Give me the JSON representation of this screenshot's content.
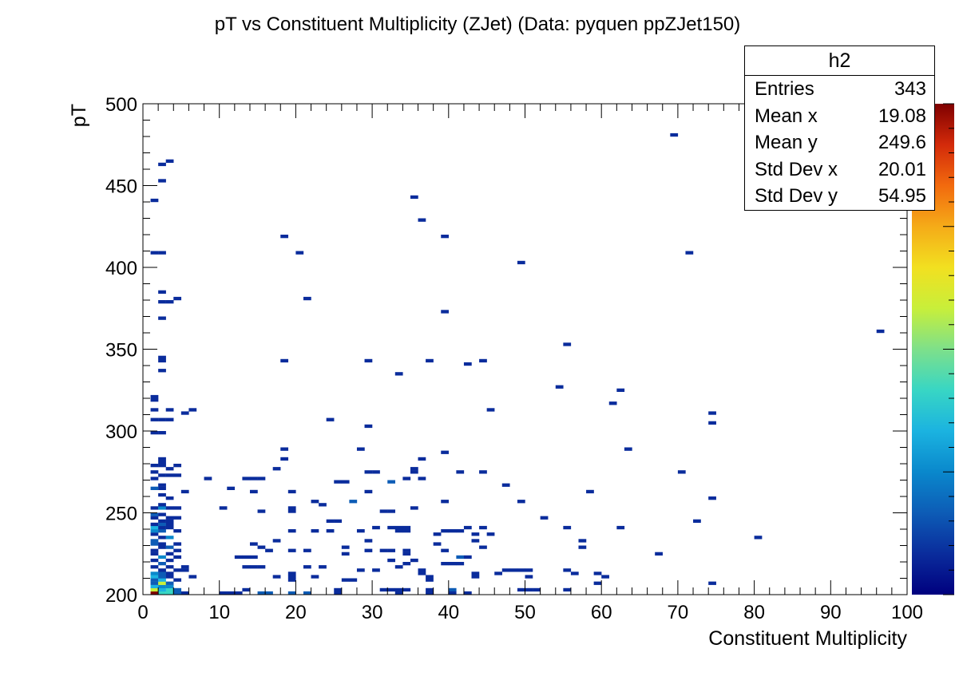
{
  "chart_data": {
    "type": "heatmap",
    "title": "pT vs Constituent Multiplicity (ZJet) (Data: pyquen ppZJet150)",
    "xlabel": "Constituent Multiplicity",
    "ylabel": "pT",
    "xlim": [
      0,
      100
    ],
    "ylim": [
      200,
      500
    ],
    "x_ticks": [
      0,
      10,
      20,
      30,
      40,
      50,
      60,
      70,
      80,
      90,
      100
    ],
    "y_ticks": [
      200,
      250,
      300,
      350,
      400,
      450,
      500
    ],
    "bin_width_x": 1,
    "bin_width_y": 2,
    "z_range": [
      0,
      20
    ],
    "colormap": [
      "#00007f",
      "#0a2c9c",
      "#0d5cb6",
      "#0a88cc",
      "#1bb3e0",
      "#38d6c4",
      "#7ee08a",
      "#c8ef3a",
      "#f2e020",
      "#f5ab18",
      "#f26a0e",
      "#d32a0a",
      "#7f0000"
    ],
    "cells": [
      [
        1,
        200,
        20
      ],
      [
        2,
        200,
        9
      ],
      [
        3,
        200,
        8
      ],
      [
        4,
        200,
        3
      ],
      [
        5,
        200,
        2
      ],
      [
        3,
        202,
        8
      ],
      [
        1,
        202,
        12
      ],
      [
        2,
        202,
        7
      ],
      [
        4,
        202,
        3
      ],
      [
        1,
        204,
        6
      ],
      [
        2,
        204,
        5
      ],
      [
        3,
        204,
        5
      ],
      [
        1,
        206,
        4
      ],
      [
        2,
        206,
        12
      ],
      [
        3,
        206,
        3
      ],
      [
        1,
        208,
        3
      ],
      [
        2,
        208,
        6
      ],
      [
        4,
        208,
        2
      ],
      [
        1,
        210,
        7
      ],
      [
        2,
        210,
        3
      ],
      [
        3,
        210,
        2
      ],
      [
        6,
        210,
        2
      ],
      [
        1,
        212,
        5
      ],
      [
        2,
        212,
        3
      ],
      [
        3,
        212,
        2
      ],
      [
        2,
        214,
        2
      ],
      [
        4,
        214,
        1
      ],
      [
        5,
        214,
        1
      ],
      [
        1,
        216,
        2
      ],
      [
        3,
        216,
        1
      ],
      [
        5,
        216,
        1
      ],
      [
        2,
        218,
        4
      ],
      [
        1,
        220,
        2
      ],
      [
        3,
        220,
        1
      ],
      [
        2,
        222,
        5
      ],
      [
        4,
        222,
        1
      ],
      [
        1,
        224,
        2
      ],
      [
        3,
        224,
        2
      ],
      [
        1,
        226,
        1
      ],
      [
        4,
        226,
        1
      ],
      [
        2,
        228,
        1
      ],
      [
        3,
        228,
        3
      ],
      [
        1,
        230,
        3
      ],
      [
        2,
        230,
        1
      ],
      [
        4,
        230,
        1
      ],
      [
        1,
        232,
        4
      ],
      [
        2,
        234,
        1
      ],
      [
        3,
        234,
        5
      ],
      [
        1,
        236,
        2
      ],
      [
        1,
        238,
        5
      ],
      [
        2,
        238,
        3
      ],
      [
        4,
        238,
        1
      ],
      [
        1,
        240,
        6
      ],
      [
        2,
        240,
        2
      ],
      [
        3,
        240,
        2
      ],
      [
        1,
        242,
        2
      ],
      [
        2,
        242,
        3
      ],
      [
        3,
        242,
        1
      ],
      [
        2,
        244,
        1
      ],
      [
        3,
        244,
        1
      ],
      [
        1,
        246,
        1
      ],
      [
        3,
        246,
        2
      ],
      [
        4,
        246,
        1
      ],
      [
        1,
        248,
        3
      ],
      [
        2,
        248,
        1
      ],
      [
        1,
        252,
        2
      ],
      [
        2,
        252,
        5
      ],
      [
        3,
        252,
        1
      ],
      [
        4,
        252,
        1
      ],
      [
        2,
        254,
        2
      ],
      [
        3,
        258,
        1
      ],
      [
        2,
        260,
        1
      ],
      [
        2,
        264,
        1
      ],
      [
        1,
        264,
        4
      ],
      [
        2,
        266,
        2
      ],
      [
        5,
        262,
        1
      ],
      [
        1,
        270,
        1
      ],
      [
        2,
        272,
        1
      ],
      [
        3,
        272,
        1
      ],
      [
        4,
        272,
        1
      ],
      [
        1,
        274,
        1
      ],
      [
        3,
        276,
        1
      ],
      [
        1,
        278,
        1
      ],
      [
        2,
        278,
        1
      ],
      [
        4,
        278,
        1
      ],
      [
        2,
        280,
        1
      ],
      [
        2,
        282,
        1
      ],
      [
        1,
        298,
        1
      ],
      [
        2,
        298,
        1
      ],
      [
        1,
        306,
        1
      ],
      [
        2,
        306,
        1
      ],
      [
        3,
        306,
        1
      ],
      [
        1,
        312,
        1
      ],
      [
        3,
        312,
        1
      ],
      [
        1,
        318,
        1
      ],
      [
        1,
        320,
        1
      ],
      [
        5,
        310,
        1
      ],
      [
        6,
        312,
        1
      ],
      [
        2,
        336,
        1
      ],
      [
        2,
        342,
        1
      ],
      [
        2,
        344,
        1
      ],
      [
        2,
        368,
        1
      ],
      [
        2,
        378,
        1
      ],
      [
        3,
        378,
        1
      ],
      [
        2,
        384,
        1
      ],
      [
        4,
        380,
        1
      ],
      [
        1,
        408,
        1
      ],
      [
        2,
        408,
        1
      ],
      [
        1,
        440,
        1
      ],
      [
        2,
        452,
        1
      ],
      [
        2,
        462,
        1
      ],
      [
        3,
        464,
        1
      ],
      [
        8,
        270,
        1
      ],
      [
        10,
        200,
        1
      ],
      [
        11,
        200,
        1
      ],
      [
        12,
        200,
        1
      ],
      [
        11,
        264,
        1
      ],
      [
        13,
        270,
        1
      ],
      [
        14,
        270,
        1
      ],
      [
        15,
        270,
        1
      ],
      [
        10,
        252,
        1
      ],
      [
        12,
        222,
        1
      ],
      [
        13,
        222,
        1
      ],
      [
        14,
        222,
        1
      ],
      [
        14,
        230,
        1
      ],
      [
        15,
        228,
        1
      ],
      [
        16,
        226,
        1
      ],
      [
        13,
        216,
        1
      ],
      [
        14,
        216,
        1
      ],
      [
        15,
        216,
        1
      ],
      [
        13,
        202,
        1
      ],
      [
        15,
        200,
        4
      ],
      [
        16,
        200,
        4
      ],
      [
        17,
        210,
        1
      ],
      [
        15,
        250,
        1
      ],
      [
        14,
        262,
        1
      ],
      [
        17,
        232,
        1
      ],
      [
        17,
        276,
        1
      ],
      [
        18,
        282,
        1
      ],
      [
        18,
        288,
        1
      ],
      [
        19,
        210,
        1
      ],
      [
        19,
        208,
        1
      ],
      [
        19,
        212,
        1
      ],
      [
        19,
        200,
        4
      ],
      [
        19,
        226,
        1
      ],
      [
        19,
        238,
        1
      ],
      [
        19,
        250,
        1
      ],
      [
        19,
        252,
        1
      ],
      [
        19,
        262,
        1
      ],
      [
        21,
        200,
        3
      ],
      [
        21,
        226,
        1
      ],
      [
        21,
        216,
        1
      ],
      [
        22,
        210,
        1
      ],
      [
        22,
        238,
        1
      ],
      [
        22,
        256,
        1
      ],
      [
        23,
        254,
        1
      ],
      [
        23,
        216,
        1
      ],
      [
        24,
        244,
        1
      ],
      [
        25,
        244,
        1
      ],
      [
        24,
        238,
        1
      ],
      [
        25,
        200,
        1
      ],
      [
        25,
        202,
        1
      ],
      [
        26,
        208,
        1
      ],
      [
        27,
        208,
        1
      ],
      [
        26,
        228,
        1
      ],
      [
        26,
        224,
        2
      ],
      [
        25,
        268,
        1
      ],
      [
        26,
        268,
        1
      ],
      [
        27,
        256,
        4
      ],
      [
        18,
        342,
        1
      ],
      [
        18,
        418,
        1
      ],
      [
        20,
        408,
        1
      ],
      [
        21,
        380,
        1
      ],
      [
        24,
        306,
        1
      ],
      [
        28,
        288,
        1
      ],
      [
        28,
        214,
        1
      ],
      [
        29,
        226,
        1
      ],
      [
        28,
        238,
        1
      ],
      [
        29,
        232,
        1
      ],
      [
        29,
        262,
        1
      ],
      [
        29,
        302,
        1
      ],
      [
        29,
        342,
        1
      ],
      [
        30,
        214,
        1
      ],
      [
        30,
        240,
        1
      ],
      [
        30,
        274,
        1
      ],
      [
        29,
        274,
        1
      ],
      [
        31,
        250,
        1
      ],
      [
        31,
        226,
        1
      ],
      [
        31,
        202,
        1
      ],
      [
        32,
        268,
        4
      ],
      [
        32,
        226,
        1
      ],
      [
        32,
        220,
        1
      ],
      [
        32,
        202,
        1
      ],
      [
        32,
        250,
        1
      ],
      [
        33,
        238,
        1
      ],
      [
        34,
        238,
        1
      ],
      [
        32,
        240,
        1
      ],
      [
        33,
        240,
        1
      ],
      [
        34,
        240,
        1
      ],
      [
        33,
        200,
        1
      ],
      [
        33,
        202,
        1
      ],
      [
        34,
        226,
        1
      ],
      [
        34,
        224,
        1
      ],
      [
        33,
        216,
        1
      ],
      [
        34,
        218,
        1
      ],
      [
        34,
        202,
        1
      ],
      [
        35,
        220,
        1
      ],
      [
        35,
        252,
        1
      ],
      [
        34,
        270,
        1
      ],
      [
        35,
        274,
        1
      ],
      [
        35,
        276,
        1
      ],
      [
        36,
        282,
        1
      ],
      [
        36,
        270,
        1
      ],
      [
        36,
        214,
        1
      ],
      [
        36,
        212,
        1
      ],
      [
        37,
        200,
        1
      ],
      [
        37,
        202,
        1
      ],
      [
        37,
        210,
        1
      ],
      [
        37,
        208,
        1
      ],
      [
        38,
        230,
        1
      ],
      [
        39,
        238,
        1
      ],
      [
        40,
        238,
        1
      ],
      [
        39,
        226,
        1
      ],
      [
        39,
        218,
        1
      ],
      [
        40,
        218,
        1
      ],
      [
        41,
        218,
        1
      ],
      [
        40,
        202,
        3
      ],
      [
        41,
        222,
        4
      ],
      [
        42,
        222,
        1
      ],
      [
        41,
        238,
        1
      ],
      [
        42,
        240,
        1
      ],
      [
        39,
        256,
        1
      ],
      [
        38,
        236,
        1
      ],
      [
        40,
        200,
        1
      ],
      [
        35,
        442,
        1
      ],
      [
        36,
        428,
        1
      ],
      [
        39,
        418,
        1
      ],
      [
        39,
        372,
        1
      ],
      [
        37,
        342,
        1
      ],
      [
        33,
        334,
        1
      ],
      [
        42,
        340,
        1
      ],
      [
        44,
        342,
        1
      ],
      [
        41,
        274,
        1
      ],
      [
        44,
        274,
        1
      ],
      [
        39,
        286,
        1
      ],
      [
        42,
        200,
        1
      ],
      [
        43,
        212,
        1
      ],
      [
        43,
        210,
        1
      ],
      [
        43,
        232,
        1
      ],
      [
        43,
        236,
        1
      ],
      [
        44,
        228,
        1
      ],
      [
        44,
        240,
        1
      ],
      [
        45,
        236,
        1
      ],
      [
        46,
        212,
        1
      ],
      [
        47,
        214,
        1
      ],
      [
        47,
        266,
        1
      ],
      [
        45,
        312,
        1
      ],
      [
        49,
        256,
        1
      ],
      [
        49,
        402,
        1
      ],
      [
        48,
        214,
        1
      ],
      [
        49,
        214,
        1
      ],
      [
        49,
        202,
        1
      ],
      [
        50,
        202,
        1
      ],
      [
        50,
        214,
        1
      ],
      [
        51,
        202,
        1
      ],
      [
        50,
        210,
        1
      ],
      [
        52,
        246,
        1
      ],
      [
        54,
        326,
        1
      ],
      [
        55,
        352,
        1
      ],
      [
        55,
        240,
        1
      ],
      [
        55,
        214,
        1
      ],
      [
        55,
        202,
        1
      ],
      [
        56,
        212,
        1
      ],
      [
        57,
        232,
        1
      ],
      [
        57,
        228,
        1
      ],
      [
        58,
        262,
        1
      ],
      [
        59,
        212,
        1
      ],
      [
        59,
        206,
        1
      ],
      [
        60,
        210,
        1
      ],
      [
        61,
        316,
        1
      ],
      [
        62,
        324,
        1
      ],
      [
        62,
        240,
        1
      ],
      [
        63,
        288,
        1
      ],
      [
        67,
        224,
        1
      ],
      [
        69,
        480,
        1
      ],
      [
        70,
        274,
        1
      ],
      [
        71,
        408,
        1
      ],
      [
        72,
        244,
        1
      ],
      [
        74,
        304,
        1
      ],
      [
        74,
        310,
        1
      ],
      [
        74,
        258,
        1
      ],
      [
        74,
        206,
        1
      ],
      [
        80,
        234,
        1
      ],
      [
        96,
        360,
        1
      ]
    ]
  },
  "stats": {
    "title": "h2",
    "rows": [
      {
        "label": "Entries",
        "value": "343"
      },
      {
        "label": "Mean x",
        "value": "19.08"
      },
      {
        "label": "Mean y",
        "value": "249.6"
      },
      {
        "label": "Std Dev x",
        "value": "20.01"
      },
      {
        "label": "Std Dev y",
        "value": "54.95"
      }
    ]
  }
}
